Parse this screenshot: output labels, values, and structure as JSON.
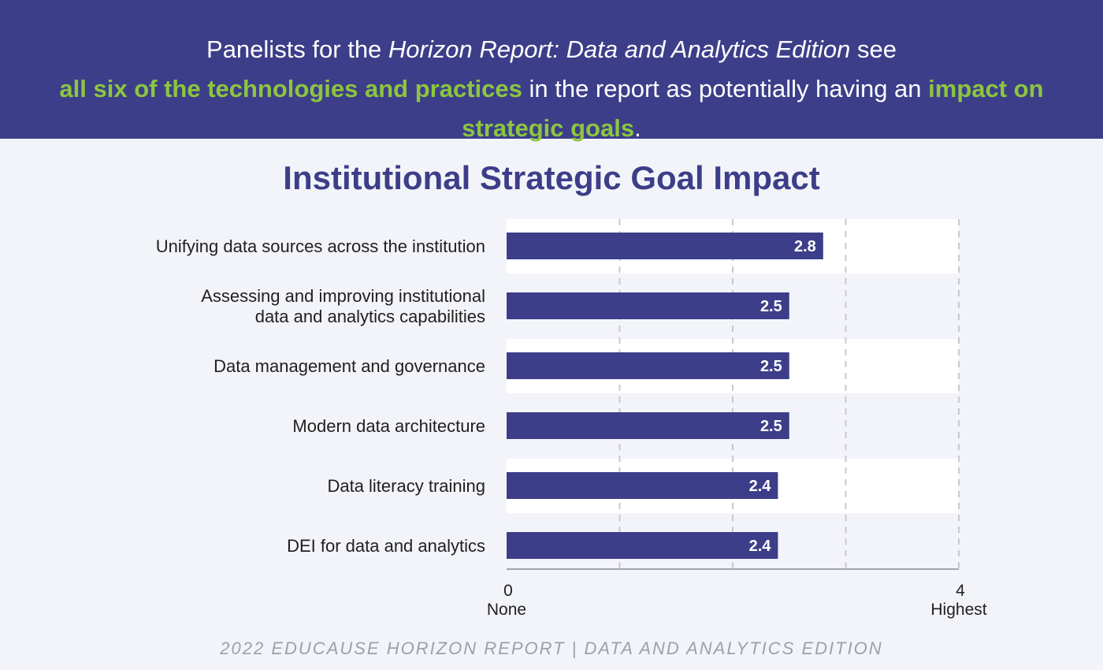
{
  "banner": {
    "part1": "Panelists for the ",
    "italic": "Horizon Report: Data and Analytics Edition",
    "part2": " see ",
    "highlight1": "all six of the technologies and practices",
    "part3": " in the report as potentially having an ",
    "highlight2": "impact on strategic goals",
    "part4": "."
  },
  "footer": "2022 EDUCAUSE HORIZON REPORT | DATA AND ANALYTICS EDITION",
  "colors": {
    "banner_bg": "#3d3e89",
    "highlight": "#8cc63f",
    "bar": "#3d3e89",
    "page_bg": "#f3f4f9"
  },
  "chart_data": {
    "type": "bar",
    "orientation": "horizontal",
    "title": "Institutional Strategic Goal Impact",
    "categories": [
      "Unifying data sources across the institution",
      "Assessing and improving institutional data and analytics capabilities",
      "Data management and governance",
      "Modern data architecture",
      "Data literacy training",
      "DEI for data and analytics"
    ],
    "values": [
      2.8,
      2.5,
      2.5,
      2.5,
      2.4,
      2.4
    ],
    "value_labels": [
      "2.8",
      "2.5",
      "2.5",
      "2.5",
      "2.4",
      "2.4"
    ],
    "xlim": [
      0,
      4
    ],
    "ticks": [
      {
        "value": 0,
        "number": "0",
        "label": "None"
      },
      {
        "value": 4,
        "number": "4",
        "label": "Highest"
      }
    ],
    "gridlines": [
      1,
      2,
      3,
      4
    ],
    "grid": true
  }
}
